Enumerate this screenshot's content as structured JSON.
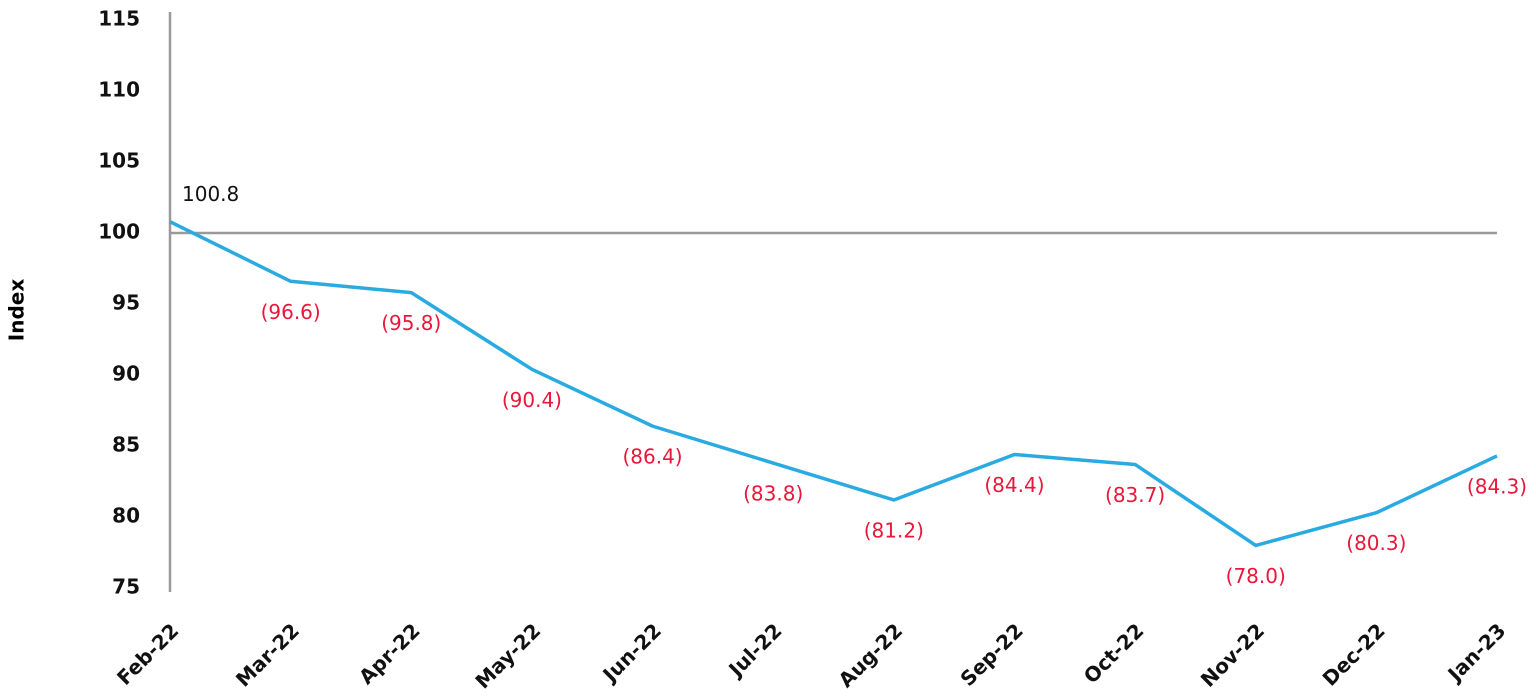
{
  "chart_data": {
    "type": "line",
    "y_label": "Index",
    "categories": [
      "Feb-22",
      "Mar-22",
      "Apr-22",
      "May-22",
      "Jun-22",
      "Jul-22",
      "Aug-22",
      "Sep-22",
      "Oct-22",
      "Nov-22",
      "Dec-22",
      "Jan-23"
    ],
    "series": [
      {
        "color": "#29abe2",
        "values": [
          100.8,
          96.6,
          95.8,
          90.4,
          86.4,
          83.8,
          81.2,
          84.4,
          83.7,
          78.0,
          80.3,
          84.3
        ],
        "value_labels": [
          "100.8",
          "(96.6)",
          "(95.8)",
          "(90.4)",
          "(86.4)",
          "(83.8)",
          "(81.2)",
          "(84.4)",
          "(83.7)",
          "(78.0)",
          "(80.3)",
          "(84.3)"
        ],
        "value_label_colors": [
          "#111111",
          "#e8173b",
          "#e8173b",
          "#e8173b",
          "#e8173b",
          "#e8173b",
          "#e8173b",
          "#e8173b",
          "#e8173b",
          "#e8173b",
          "#e8173b",
          "#e8173b"
        ]
      }
    ],
    "ylim": [
      75,
      115
    ],
    "yticks": [
      75,
      80,
      85,
      90,
      95,
      100,
      105,
      110,
      115
    ],
    "reference_line": 100,
    "grid": false
  }
}
